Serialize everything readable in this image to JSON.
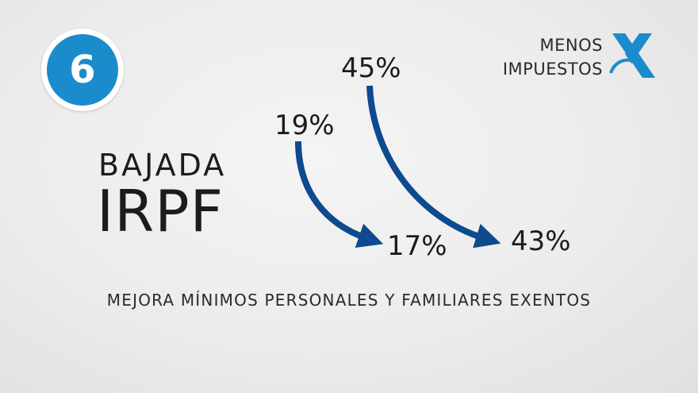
{
  "badge": {
    "number": "6"
  },
  "brand": {
    "line1": "MENOS",
    "line2": "IMPUESTOS"
  },
  "title": {
    "line1": "BAJADA",
    "line2": "IRPF"
  },
  "rates": {
    "first_from": "19%",
    "first_to": "17%",
    "second_from": "45%",
    "second_to": "43%"
  },
  "subtitle": "MEJORA MÍNIMOS PERSONALES Y FAMILIARES EXENTOS",
  "colors": {
    "badge": "#1a8ccc",
    "arrow": "#0d4a8f",
    "logo": "#1a8ccc"
  },
  "icons": {
    "logo": "tax-agency-logo-icon",
    "arrow": "curved-arrow-icon"
  }
}
